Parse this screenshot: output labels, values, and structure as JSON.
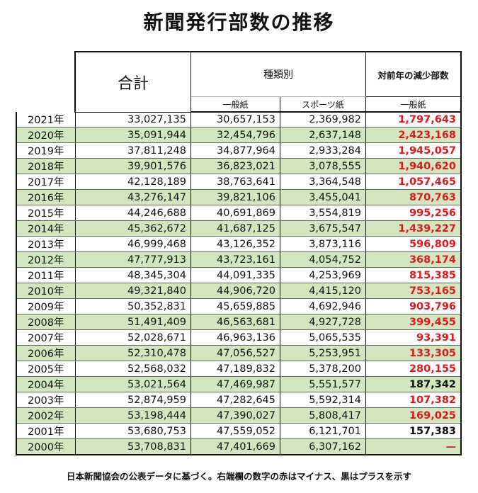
{
  "title": "新聞発行部数の推移",
  "header": {
    "total": "合計",
    "kinds": "種類別",
    "decrease": "対前年の減少部数",
    "general": "一般紙",
    "sports": "スポーツ紙",
    "decrease_general": "一般紙"
  },
  "rows": [
    {
      "year": "2021年",
      "total": "33,027,135",
      "general": "30,657,153",
      "sports": "2,369,982",
      "decrease": "1,797,643",
      "color": "red"
    },
    {
      "year": "2020年",
      "total": "35,091,944",
      "general": "32,454,796",
      "sports": "2,637,148",
      "decrease": "2,423,168",
      "color": "red"
    },
    {
      "year": "2019年",
      "total": "37,811,248",
      "general": "34,877,964",
      "sports": "2,933,284",
      "decrease": "1,945,057",
      "color": "red"
    },
    {
      "year": "2018年",
      "total": "39,901,576",
      "general": "36,823,021",
      "sports": "3,078,555",
      "decrease": "1,940,620",
      "color": "red"
    },
    {
      "year": "2017年",
      "total": "42,128,189",
      "general": "38,763,641",
      "sports": "3,364,548",
      "decrease": "1,057,465",
      "color": "red"
    },
    {
      "year": "2016年",
      "total": "43,276,147",
      "general": "39,821,106",
      "sports": "3,455,041",
      "decrease": "870,763",
      "color": "red"
    },
    {
      "year": "2015年",
      "total": "44,246,688",
      "general": "40,691,869",
      "sports": "3,554,819",
      "decrease": "995,256",
      "color": "red"
    },
    {
      "year": "2014年",
      "total": "45,362,672",
      "general": "41,687,125",
      "sports": "3,675,547",
      "decrease": "1,439,227",
      "color": "red"
    },
    {
      "year": "2013年",
      "total": "46,999,468",
      "general": "43,126,352",
      "sports": "3,873,116",
      "decrease": "596,809",
      "color": "red"
    },
    {
      "year": "2012年",
      "total": "47,777,913",
      "general": "43,723,161",
      "sports": "4,054,752",
      "decrease": "368,174",
      "color": "red"
    },
    {
      "year": "2011年",
      "total": "48,345,304",
      "general": "44,091,335",
      "sports": "4,253,969",
      "decrease": "815,385",
      "color": "red"
    },
    {
      "year": "2010年",
      "total": "49,321,840",
      "general": "44,906,720",
      "sports": "4,415,120",
      "decrease": "753,165",
      "color": "red"
    },
    {
      "year": "2009年",
      "total": "50,352,831",
      "general": "45,659,885",
      "sports": "4,692,946",
      "decrease": "903,796",
      "color": "red"
    },
    {
      "year": "2008年",
      "total": "51,491,409",
      "general": "46,563,681",
      "sports": "4,927,728",
      "decrease": "399,455",
      "color": "red"
    },
    {
      "year": "2007年",
      "total": "52,028,671",
      "general": "46,963,136",
      "sports": "5,065,535",
      "decrease": "93,391",
      "color": "red"
    },
    {
      "year": "2006年",
      "total": "52,310,478",
      "general": "47,056,527",
      "sports": "5,253,951",
      "decrease": "133,305",
      "color": "red"
    },
    {
      "year": "2005年",
      "total": "52,568,032",
      "general": "47,189,832",
      "sports": "5,378,200",
      "decrease": "280,155",
      "color": "red"
    },
    {
      "year": "2004年",
      "total": "53,021,564",
      "general": "47,469,987",
      "sports": "5,551,577",
      "decrease": "187,342",
      "color": "black"
    },
    {
      "year": "2003年",
      "total": "52,874,959",
      "general": "47,282,645",
      "sports": "5,592,314",
      "decrease": "107,382",
      "color": "red"
    },
    {
      "year": "2002年",
      "total": "53,198,444",
      "general": "47,390,027",
      "sports": "5,808,417",
      "decrease": "169,025",
      "color": "red"
    },
    {
      "year": "2001年",
      "total": "53,680,753",
      "general": "47,559,052",
      "sports": "6,121,701",
      "decrease": "157,383",
      "color": "black"
    },
    {
      "year": "2000年",
      "total": "53,708,831",
      "general": "47,401,669",
      "sports": "6,307,162",
      "decrease": "—",
      "color": "red"
    }
  ],
  "footnote": "日本新聞協会の公表データに基づく。右端欄の数字の赤はマイナス、黒はプラスを示す",
  "colors": {
    "red": "#e0191d",
    "black": "#111111",
    "green_row": "#d3e6bf"
  }
}
